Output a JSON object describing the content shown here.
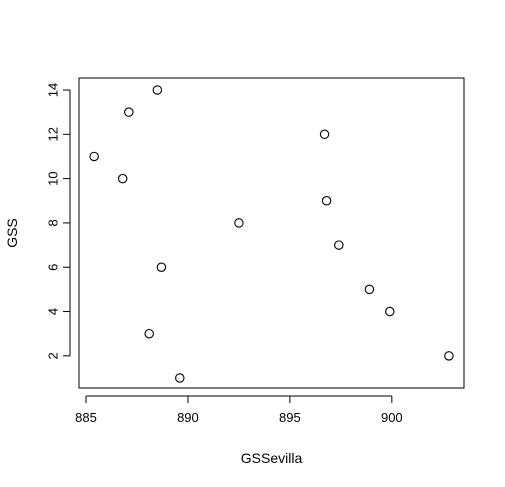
{
  "chart_data": {
    "type": "scatter",
    "title": "",
    "xlabel": "GSSevilla",
    "ylabel": "GSS",
    "xlim": [
      885,
      903
    ],
    "ylim": [
      1,
      14
    ],
    "x_ticks": [
      885,
      890,
      895,
      900
    ],
    "y_ticks": [
      2,
      4,
      6,
      8,
      10,
      12,
      14
    ],
    "x_tick_labels": [
      "885",
      "890",
      "895",
      "900"
    ],
    "y_tick_labels": [
      "2",
      "4",
      "6",
      "8",
      "10",
      "12",
      "14"
    ],
    "grid": false,
    "marker": "open-circle",
    "series": [
      {
        "points": [
          {
            "x": 885.4,
            "y": 11
          },
          {
            "x": 886.8,
            "y": 10
          },
          {
            "x": 887.1,
            "y": 13
          },
          {
            "x": 888.1,
            "y": 3
          },
          {
            "x": 888.5,
            "y": 14
          },
          {
            "x": 888.7,
            "y": 6
          },
          {
            "x": 889.6,
            "y": 1
          },
          {
            "x": 892.5,
            "y": 8
          },
          {
            "x": 896.7,
            "y": 12
          },
          {
            "x": 896.8,
            "y": 9
          },
          {
            "x": 897.4,
            "y": 7
          },
          {
            "x": 898.9,
            "y": 5
          },
          {
            "x": 899.9,
            "y": 4
          },
          {
            "x": 902.8,
            "y": 2
          }
        ]
      }
    ]
  },
  "colors": {
    "axis": "#000000",
    "point_stroke": "#000000",
    "point_fill": "none",
    "background": "#ffffff"
  }
}
